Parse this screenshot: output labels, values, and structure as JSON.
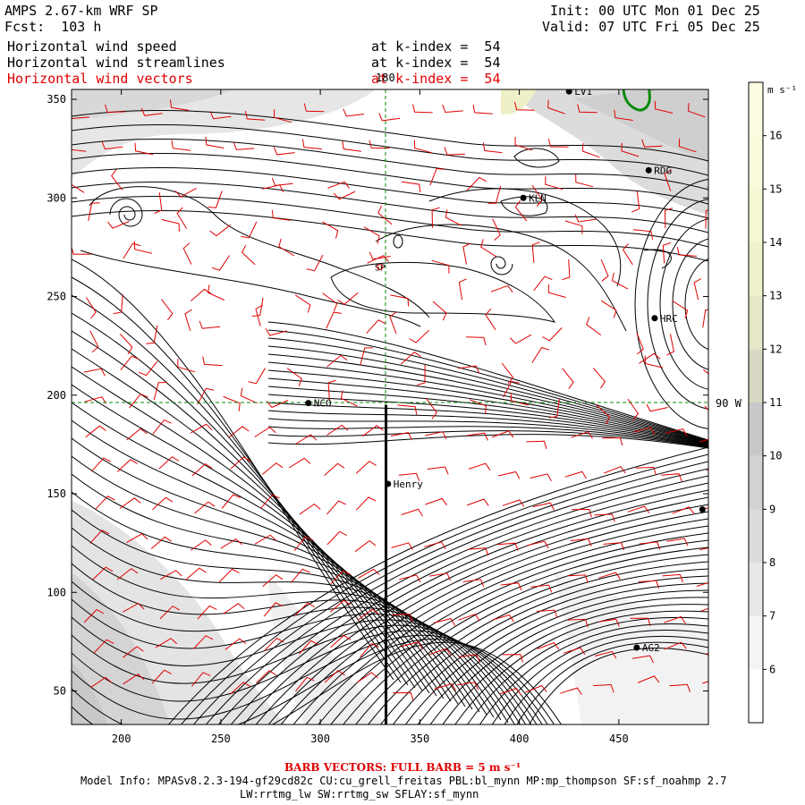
{
  "header": {
    "title": "AMPS 2.67-km WRF SP",
    "forecast": "Fcst:  103 h",
    "init": "Init: 00 UTC Mon 01 Dec 25",
    "valid": "Valid: 07 UTC Fri 05 Dec 25",
    "fields": [
      {
        "name": "Horizontal wind speed",
        "level": "at k-index =  54",
        "color": "#000000"
      },
      {
        "name": "Horizontal wind streamlines",
        "level": "at k-index =  54",
        "color": "#000000"
      },
      {
        "name": "Horizontal wind vectors",
        "level": "at k-index =  54",
        "color": "#e00000"
      }
    ]
  },
  "map": {
    "x_ticks": [
      200,
      250,
      300,
      350,
      400,
      450
    ],
    "y_ticks": [
      50,
      100,
      150,
      200,
      250,
      300,
      350
    ],
    "x_range": [
      175,
      495
    ],
    "y_range": [
      33,
      355
    ],
    "meridian_label": "180",
    "parallel_label": "90 W",
    "stations": [
      {
        "name": "LV1",
        "x": 425,
        "y": 354
      },
      {
        "name": "RDG",
        "x": 465,
        "y": 314
      },
      {
        "name": "KLN",
        "x": 402,
        "y": 300
      },
      {
        "name": "HRC",
        "x": 468,
        "y": 239
      },
      {
        "name": "NCO",
        "x": 294,
        "y": 196
      },
      {
        "name": "Henry",
        "x": 334,
        "y": 155
      },
      {
        "name": "AG2",
        "x": 459,
        "y": 72
      },
      {
        "name": "",
        "x": 492,
        "y": 142
      }
    ],
    "pole_label": "SP",
    "pole": {
      "x": 330,
      "y": 265
    },
    "transect_x": 333,
    "transect_y": [
      33,
      195
    ]
  },
  "colorbar": {
    "unit": "m s⁻¹",
    "levels": [
      "6",
      "7",
      "8",
      "9",
      "10",
      "11",
      "12",
      "13",
      "14",
      "15",
      "16"
    ],
    "colors": [
      "#ffffff",
      "#f4f4f4",
      "#e8e8e8",
      "#dcdcdc",
      "#d2d2d2",
      "#c8c8c8",
      "#d8d8c4",
      "#e6e6c8",
      "#f0f0cc",
      "#f6f6d4",
      "#fafadc",
      "#fdfde4"
    ]
  },
  "footer": {
    "barb_note": "BARB VECTORS: FULL BARB = 5 m s⁻¹",
    "model_info": "Model Info: MPASv8.2.3-194-gf29cd82c CU:cu_grell_freitas PBL:bl_mynn MP:mp_thompson SF:sf_noahmp 2.7",
    "model_info2": "LW:rrtmg_lw SW:rrtmg_sw SFLAY:sf_mynn"
  }
}
